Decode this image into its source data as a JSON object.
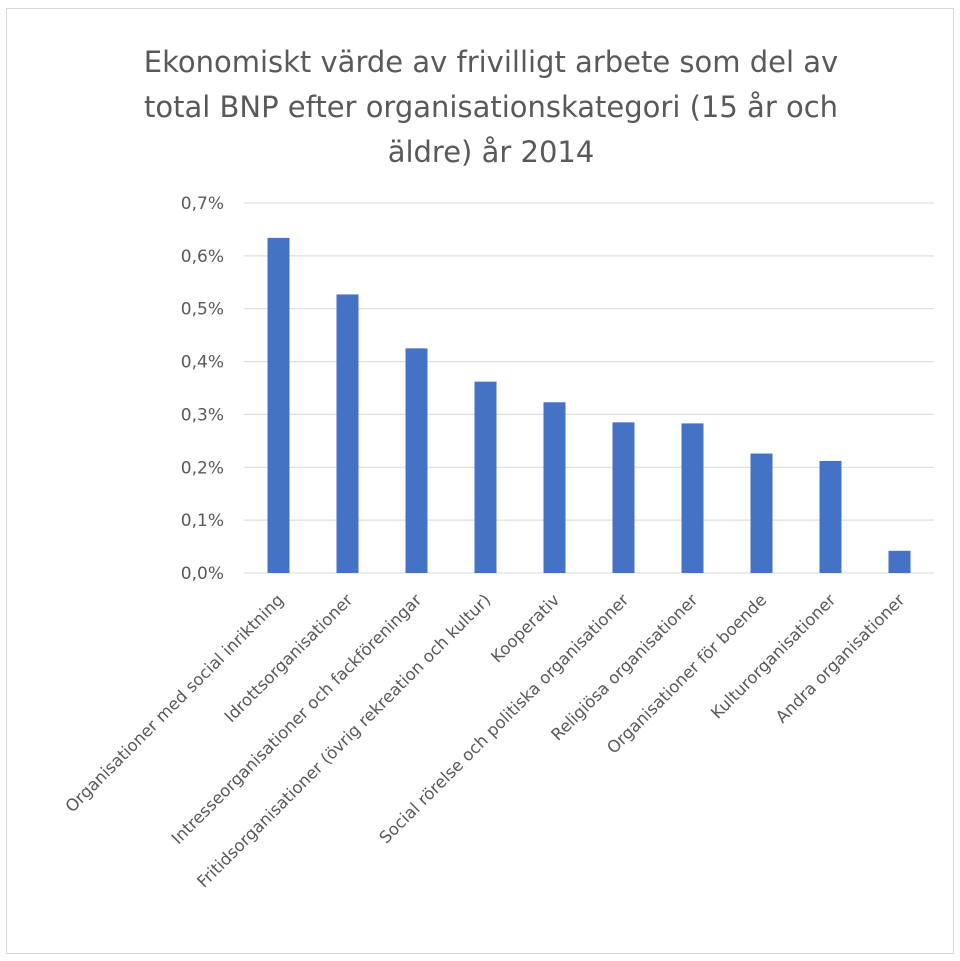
{
  "chart_data": {
    "type": "bar",
    "title": "Ekonomiskt värde av frivilligt arbete som del av total BNP efter organisationskategori (15 år och äldre) år 2014",
    "title_lines": [
      "Ekonomiskt värde av frivilligt arbete som del av",
      "total BNP efter organisationskategori (15 år och",
      "äldre) år 2014"
    ],
    "xlabel": "",
    "ylabel": "",
    "categories": [
      "Organisationer med social inriktning",
      "Idrottsorganisationer",
      "Intresseorganisationer och fackföreningar",
      "Fritidsorganisationer (övrig rekreation och kultur)",
      "Kooperativ",
      "Social rörelse och politiska organisationer",
      "Religiösa organisationer",
      "Organisationer för boende",
      "Kulturorganisationer",
      "Andra organisationer"
    ],
    "values": [
      0.634,
      0.527,
      0.425,
      0.362,
      0.323,
      0.285,
      0.283,
      0.226,
      0.212,
      0.042
    ],
    "unit": "%",
    "ylim": [
      0,
      0.7
    ],
    "yticks": [
      0.0,
      0.1,
      0.2,
      0.3,
      0.4,
      0.5,
      0.6,
      0.7
    ],
    "ytick_labels": [
      "0,0%",
      "0,1%",
      "0,2%",
      "0,3%",
      "0,4%",
      "0,5%",
      "0,6%",
      "0,7%"
    ],
    "grid": true,
    "legend": "none",
    "colors": {
      "bar": "#4472c4",
      "grid": "#d9d9d9",
      "text": "#595959",
      "border": "#d9d9d9"
    }
  }
}
